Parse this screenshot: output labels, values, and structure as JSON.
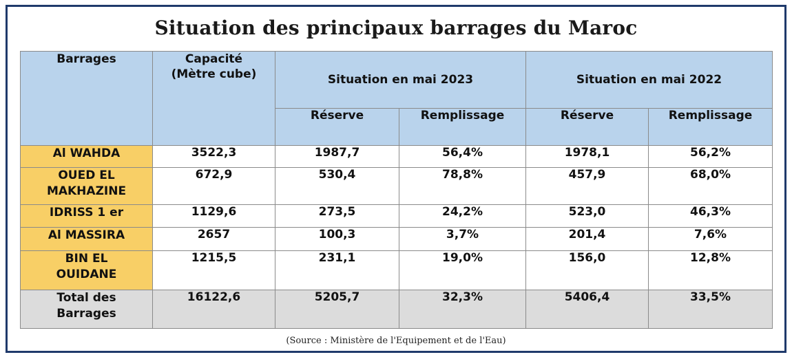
{
  "title": "Situation des principaux barrages du Maroc",
  "headers": {
    "barrages": "Barrages",
    "capacite_line1": "Capacité",
    "capacite_line2": "(Mètre cube)",
    "group_2023": "Situation en mai 2023",
    "group_2022": "Situation en mai 2022",
    "reserve": "Réserve",
    "remplissage": "Remplissage"
  },
  "rows": [
    {
      "name_line1": "Al WAHDA",
      "name_line2": "",
      "capacite": "3522,3",
      "reserve_2023": "1987,7",
      "remplissage_2023": "56,4%",
      "reserve_2022": "1978,1",
      "remplissage_2022": "56,2%"
    },
    {
      "name_line1": "OUED EL",
      "name_line2": "MAKHAZINE",
      "capacite": "672,9",
      "reserve_2023": "530,4",
      "remplissage_2023": "78,8%",
      "reserve_2022": "457,9",
      "remplissage_2022": "68,0%"
    },
    {
      "name_line1": "IDRISS 1 er",
      "name_line2": "",
      "capacite": "1129,6",
      "reserve_2023": "273,5",
      "remplissage_2023": "24,2%",
      "reserve_2022": "523,0",
      "remplissage_2022": "46,3%"
    },
    {
      "name_line1": "Al MASSIRA",
      "name_line2": "",
      "capacite": "2657",
      "reserve_2023": "100,3",
      "remplissage_2023": "3,7%",
      "reserve_2022": "201,4",
      "remplissage_2022": "7,6%"
    },
    {
      "name_line1": "BIN EL",
      "name_line2": "OUIDANE",
      "capacite": "1215,5",
      "reserve_2023": "231,1",
      "remplissage_2023": "19,0%",
      "reserve_2022": "156,0",
      "remplissage_2022": "12,8%"
    }
  ],
  "total": {
    "name_line1": "Total des",
    "name_line2": "Barrages",
    "capacite": "16122,6",
    "reserve_2023": "5205,7",
    "remplissage_2023": "32,3%",
    "reserve_2022": "5406,4",
    "remplissage_2022": "33,5%"
  },
  "source": "(Source : Ministère de l'Equipement et de l'Eau)",
  "colors": {
    "header_bg": "#b9d3ec",
    "name_bg": "#f8cf66",
    "total_bg": "#dcdcdc",
    "frame": "#1f3a6b"
  }
}
